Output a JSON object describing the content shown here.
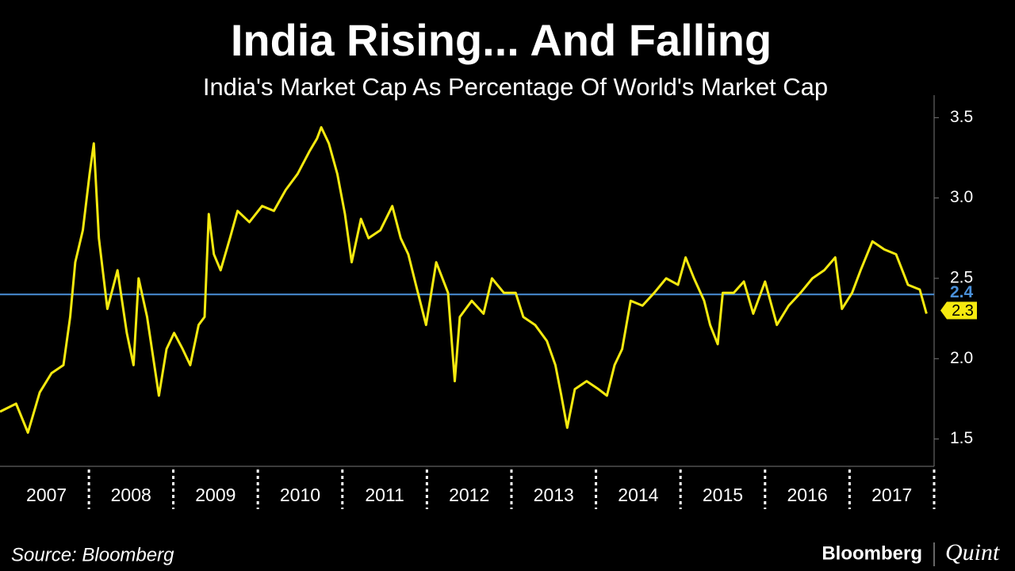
{
  "chart_data": {
    "type": "line",
    "title": "India Rising... And Falling",
    "subtitle": "India's Market Cap As Percentage Of World's Market Cap",
    "source": "Source: Bloomberg",
    "brand": {
      "name": "Bloomberg",
      "partner": "Quint"
    },
    "x": [
      2006.95,
      2007.14,
      2007.28,
      2007.42,
      2007.56,
      2007.7,
      2007.78,
      2007.84,
      2007.93,
      2008.01,
      2008.06,
      2008.12,
      2008.22,
      2008.34,
      2008.45,
      2008.53,
      2008.59,
      2008.69,
      2008.83,
      2008.92,
      2009.01,
      2009.11,
      2009.2,
      2009.3,
      2009.37,
      2009.42,
      2009.48,
      2009.56,
      2009.67,
      2009.76,
      2009.9,
      2010.05,
      2010.19,
      2010.33,
      2010.47,
      2010.61,
      2010.7,
      2010.75,
      2010.84,
      2010.94,
      2011.03,
      2011.11,
      2011.22,
      2011.31,
      2011.45,
      2011.59,
      2011.69,
      2011.78,
      2011.87,
      2011.99,
      2012.11,
      2012.25,
      2012.33,
      2012.39,
      2012.53,
      2012.67,
      2012.77,
      2012.91,
      2013.05,
      2013.14,
      2013.28,
      2013.42,
      2013.52,
      2013.59,
      2013.66,
      2013.75,
      2013.89,
      2014.03,
      2014.13,
      2014.22,
      2014.31,
      2014.41,
      2014.55,
      2014.69,
      2014.83,
      2014.97,
      2015.06,
      2015.16,
      2015.28,
      2015.35,
      2015.44,
      2015.5,
      2015.63,
      2015.75,
      2015.86,
      2016.0,
      2016.14,
      2016.28,
      2016.42,
      2016.56,
      2016.7,
      2016.83,
      2016.91,
      2017.03,
      2017.13,
      2017.27,
      2017.41,
      2017.55,
      2017.69,
      2017.83,
      2017.91
    ],
    "series": [
      {
        "color": "#f5e90f",
        "values": [
          1.67,
          1.72,
          1.54,
          1.79,
          1.91,
          1.96,
          2.26,
          2.6,
          2.8,
          3.15,
          3.34,
          2.75,
          2.31,
          2.55,
          2.16,
          1.96,
          2.5,
          2.26,
          1.77,
          2.06,
          2.16,
          2.06,
          1.96,
          2.21,
          2.26,
          2.9,
          2.65,
          2.55,
          2.75,
          2.92,
          2.85,
          2.95,
          2.92,
          3.05,
          3.15,
          3.29,
          3.37,
          3.44,
          3.34,
          3.15,
          2.9,
          2.6,
          2.87,
          2.75,
          2.8,
          2.95,
          2.75,
          2.65,
          2.46,
          2.21,
          2.6,
          2.41,
          1.86,
          2.26,
          2.36,
          2.28,
          2.5,
          2.41,
          2.41,
          2.26,
          2.21,
          2.11,
          1.96,
          1.77,
          1.57,
          1.81,
          1.86,
          1.81,
          1.77,
          1.96,
          2.06,
          2.36,
          2.33,
          2.41,
          2.5,
          2.46,
          2.63,
          2.5,
          2.36,
          2.21,
          2.09,
          2.41,
          2.41,
          2.48,
          2.28,
          2.48,
          2.21,
          2.33,
          2.41,
          2.5,
          2.55,
          2.63,
          2.31,
          2.41,
          2.55,
          2.73,
          2.68,
          2.65,
          2.46,
          2.43,
          2.28
        ]
      }
    ],
    "last_value": 2.3,
    "reference_line": {
      "value": 2.4,
      "color": "#4a90d9"
    },
    "xlim": [
      2006.95,
      2018.0
    ],
    "xticks": [
      {
        "value": 2007.5,
        "label": "2007"
      },
      {
        "value": 2008.5,
        "label": "2008"
      },
      {
        "value": 2009.5,
        "label": "2009"
      },
      {
        "value": 2010.5,
        "label": "2010"
      },
      {
        "value": 2011.5,
        "label": "2011"
      },
      {
        "value": 2012.5,
        "label": "2012"
      },
      {
        "value": 2013.5,
        "label": "2013"
      },
      {
        "value": 2014.5,
        "label": "2014"
      },
      {
        "value": 2015.5,
        "label": "2015"
      },
      {
        "value": 2016.5,
        "label": "2016"
      },
      {
        "value": 2017.5,
        "label": "2017"
      }
    ],
    "ylim": [
      1.33,
      3.64
    ],
    "yticks": [
      1.5,
      {
        "value": 2,
        "label": "2.0"
      },
      2.5,
      {
        "value": 3,
        "label": "3.0"
      },
      3.5
    ]
  }
}
